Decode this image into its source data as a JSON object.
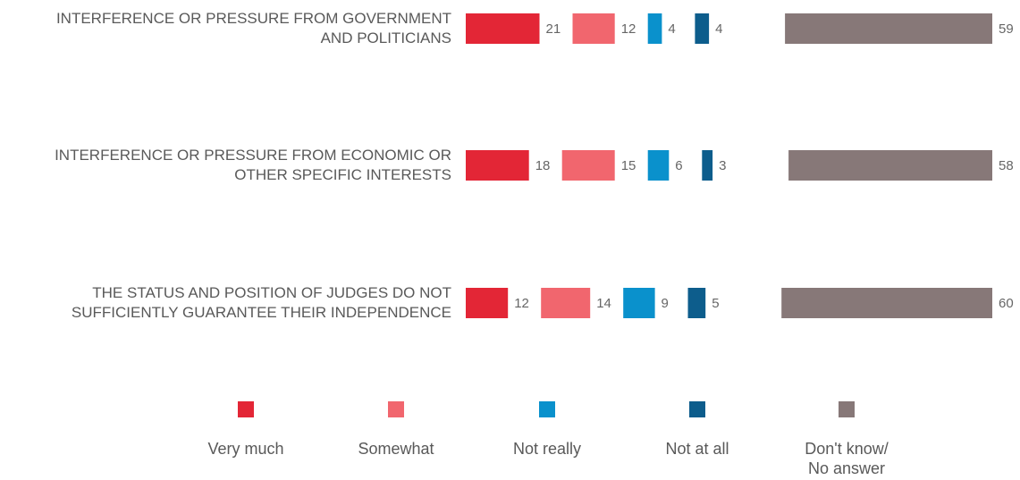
{
  "chart_data": {
    "type": "bar",
    "stacked": false,
    "categories": [
      [
        "INTERFERENCE OR PRESSURE FROM GOVERNMENT",
        "AND POLITICIANS"
      ],
      [
        "INTERFERENCE OR PRESSURE FROM ECONOMIC OR",
        "OTHER SPECIFIC INTERESTS"
      ],
      [
        "THE STATUS AND POSITION OF JUDGES DO NOT",
        "SUFFICIENTLY GUARANTEE THEIR INDEPENDENCE"
      ]
    ],
    "series": [
      {
        "name": "Very much",
        "color": "#e32636",
        "values": [
          21,
          18,
          12
        ]
      },
      {
        "name": "Somewhat",
        "color": "#f1666e",
        "values": [
          12,
          15,
          14
        ]
      },
      {
        "name": "Not really",
        "color": "#0a91cc",
        "values": [
          4,
          6,
          9
        ]
      },
      {
        "name": "Not at all",
        "color": "#0d5d8c",
        "values": [
          4,
          3,
          5
        ]
      },
      {
        "name": "Don't know/\nNo answer",
        "color": "#877878",
        "values": [
          59,
          58,
          60
        ]
      }
    ],
    "legend_position": "bottom",
    "grid": false,
    "axes_visible": false
  }
}
